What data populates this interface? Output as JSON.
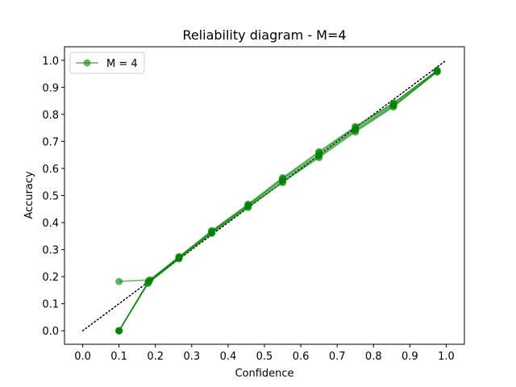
{
  "chart_data": {
    "type": "line",
    "title": "Reliability diagram - M=4",
    "xlabel": "Confidence",
    "ylabel": "Accuracy",
    "xlim": [
      -0.05,
      1.05
    ],
    "ylim": [
      -0.05,
      1.05
    ],
    "xticks": [
      0.0,
      0.1,
      0.2,
      0.3,
      0.4,
      0.5,
      0.6,
      0.7,
      0.8,
      0.9,
      1.0
    ],
    "yticks": [
      0.0,
      0.1,
      0.2,
      0.3,
      0.4,
      0.5,
      0.6,
      0.7,
      0.8,
      0.9,
      1.0
    ],
    "xtick_labels": [
      "0.0",
      "0.1",
      "0.2",
      "0.3",
      "0.4",
      "0.5",
      "0.6",
      "0.7",
      "0.8",
      "0.9",
      "1.0"
    ],
    "ytick_labels": [
      "0.0",
      "0.1",
      "0.2",
      "0.3",
      "0.4",
      "0.5",
      "0.6",
      "0.7",
      "0.8",
      "0.9",
      "1.0"
    ],
    "grid": false,
    "legend": {
      "placement": "top-left",
      "entries": [
        "M = 4"
      ]
    },
    "diagonal": {
      "x": [
        0.0,
        1.0
      ],
      "y": [
        0.0,
        1.0
      ],
      "style": "dotted",
      "color": "#000000"
    },
    "series": [
      {
        "name": "M = 4",
        "color": "#008000",
        "alpha": 0.6,
        "x": [
          0.1,
          0.185,
          0.265,
          0.355,
          0.455,
          0.55,
          0.65,
          0.75,
          0.855,
          0.975
        ],
        "y": [
          0.182,
          0.188,
          0.272,
          0.365,
          0.465,
          0.562,
          0.658,
          0.752,
          0.84,
          0.962
        ]
      },
      {
        "color": "#008000",
        "alpha": 0.6,
        "x": [
          0.1,
          0.18,
          0.265,
          0.355,
          0.455,
          0.55,
          0.65,
          0.75,
          0.855,
          0.975
        ],
        "y": [
          0.0,
          0.178,
          0.268,
          0.36,
          0.458,
          0.55,
          0.64,
          0.735,
          0.828,
          0.958
        ]
      },
      {
        "color": "#008000",
        "alpha": 0.6,
        "x": [
          0.1,
          0.182,
          0.265,
          0.355,
          0.455,
          0.55,
          0.65,
          0.75,
          0.855,
          0.975
        ],
        "y": [
          0.0,
          0.183,
          0.27,
          0.368,
          0.462,
          0.558,
          0.65,
          0.745,
          0.835,
          0.96
        ]
      },
      {
        "color": "#008000",
        "alpha": 0.6,
        "x": [
          0.1,
          0.18,
          0.265,
          0.355,
          0.455,
          0.55,
          0.65,
          0.75,
          0.855,
          0.975
        ],
        "y": [
          0.0,
          0.175,
          0.266,
          0.362,
          0.456,
          0.548,
          0.645,
          0.74,
          0.83,
          0.957
        ]
      },
      {
        "color": "#008000",
        "alpha": 0.6,
        "x": [
          0.1,
          0.183,
          0.265,
          0.355,
          0.455,
          0.55,
          0.65,
          0.75,
          0.855,
          0.975
        ],
        "y": [
          0.0,
          0.186,
          0.274,
          0.37,
          0.468,
          0.566,
          0.662,
          0.755,
          0.842,
          0.963
        ]
      }
    ]
  }
}
